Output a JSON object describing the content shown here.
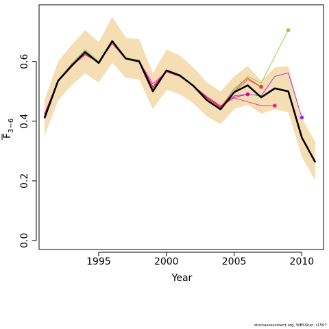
{
  "chart_data": {
    "type": "line",
    "title": "",
    "xlabel": "Year",
    "ylabel_main": "F",
    "ylabel_sub": "3−6",
    "xlim": [
      1990.6,
      2011.6
    ],
    "ylim": [
      -0.03,
      0.79
    ],
    "x_ticks": [
      1995,
      2000,
      2005,
      2010
    ],
    "y_ticks": [
      0.0,
      0.2,
      0.4,
      0.6
    ],
    "y_tick_labels": [
      "0.0",
      "0.2",
      "0.4",
      "0.6"
    ],
    "grid": false,
    "legend": "none",
    "band": {
      "color": "#f5deb3",
      "x": [
        1991,
        1992,
        1993,
        1994,
        1995,
        1996,
        1997,
        1998,
        1999,
        2000,
        2001,
        2002,
        2003,
        2004,
        2005,
        2006,
        2007,
        2008,
        2009,
        2010,
        2011
      ],
      "lower": [
        0.35,
        0.47,
        0.52,
        0.56,
        0.53,
        0.595,
        0.545,
        0.54,
        0.44,
        0.505,
        0.49,
        0.46,
        0.415,
        0.39,
        0.44,
        0.455,
        0.425,
        0.44,
        0.43,
        0.28,
        0.2
      ],
      "upper": [
        0.47,
        0.6,
        0.655,
        0.705,
        0.665,
        0.75,
        0.68,
        0.675,
        0.56,
        0.64,
        0.62,
        0.58,
        0.53,
        0.5,
        0.55,
        0.585,
        0.535,
        0.58,
        0.585,
        0.41,
        0.33
      ]
    },
    "series": [
      {
        "color": "#7fd13b",
        "width": 0.9,
        "x": [
          1991,
          1992,
          1993,
          1994,
          1995,
          1996,
          1997,
          1998,
          1999,
          2000,
          2001,
          2002,
          2003,
          2004,
          2005,
          2006,
          2007,
          2009
        ],
        "values": [
          0.415,
          0.535,
          0.592,
          0.64,
          0.6,
          0.672,
          0.612,
          0.605,
          0.505,
          0.572,
          0.556,
          0.52,
          0.475,
          0.442,
          0.5,
          0.55,
          0.528,
          0.705
        ],
        "endpoint": {
          "x": 2009,
          "y": 0.705
        }
      },
      {
        "color": "#c86428",
        "width": 0.9,
        "x": [
          1991,
          1992,
          1993,
          1994,
          1995,
          1996,
          1997,
          1998,
          1999,
          2000,
          2001,
          2002,
          2003,
          2004,
          2005,
          2006,
          2007
        ],
        "values": [
          0.42,
          0.538,
          0.59,
          0.632,
          0.598,
          0.668,
          0.61,
          0.603,
          0.51,
          0.57,
          0.553,
          0.518,
          0.478,
          0.446,
          0.508,
          0.545,
          0.515
        ],
        "endpoint": {
          "x": 2007,
          "y": 0.515
        }
      },
      {
        "color": "#ff1493",
        "width": 0.9,
        "x": [
          1991,
          1992,
          1993,
          1994,
          1995,
          1996,
          1997,
          1998,
          1999,
          2000,
          2001,
          2002,
          2003,
          2004,
          2005,
          2006,
          2007,
          2008
        ],
        "values": [
          0.425,
          0.535,
          0.585,
          0.622,
          0.597,
          0.66,
          0.608,
          0.6,
          0.525,
          0.565,
          0.55,
          0.518,
          0.482,
          0.452,
          0.478,
          0.465,
          0.452,
          0.452
        ],
        "endpoint": {
          "x": 2008,
          "y": 0.452
        }
      },
      {
        "color": "#a020f0",
        "width": 0.9,
        "x": [
          1991,
          1992,
          1993,
          1994,
          1995,
          1996,
          1997,
          1998,
          1999,
          2000,
          2001,
          2002,
          2003,
          2004,
          2005,
          2006,
          2007,
          2008,
          2009,
          2010
        ],
        "values": [
          0.418,
          0.535,
          0.588,
          0.63,
          0.598,
          0.665,
          0.61,
          0.602,
          0.515,
          0.568,
          0.552,
          0.518,
          0.478,
          0.448,
          0.485,
          0.49,
          0.485,
          0.55,
          0.562,
          0.412
        ],
        "endpoint": {
          "x": 2010,
          "y": 0.412
        }
      },
      {
        "color": "#ff3030",
        "width": 0.9,
        "x": [
          1991,
          1992,
          1993,
          1994,
          1995,
          1996,
          1997,
          1998,
          1999,
          2000,
          2001,
          2002,
          2003,
          2004,
          2005,
          2006,
          2007
        ],
        "values": [
          0.418,
          0.535,
          0.59,
          0.628,
          0.597,
          0.666,
          0.61,
          0.602,
          0.512,
          0.569,
          0.553,
          0.518,
          0.477,
          0.446,
          0.498,
          0.54,
          0.515
        ],
        "endpoint": {
          "x": 2007,
          "y": 0.515
        }
      },
      {
        "color": "#c71585",
        "width": 0.9,
        "x": [
          1991,
          1992,
          1993,
          1994,
          1995,
          1996,
          1997,
          1998,
          1999,
          2000,
          2001,
          2002,
          2003,
          2004,
          2005,
          2006
        ],
        "values": [
          0.42,
          0.535,
          0.588,
          0.625,
          0.597,
          0.665,
          0.61,
          0.602,
          0.515,
          0.568,
          0.552,
          0.518,
          0.479,
          0.448,
          0.48,
          0.49
        ],
        "endpoint": {
          "x": 2006,
          "y": 0.49
        }
      },
      {
        "color": "#000000",
        "width": 2.6,
        "x": [
          1991,
          1992,
          1993,
          1994,
          1995,
          1996,
          1997,
          1998,
          1999,
          2000,
          2001,
          2002,
          2003,
          2004,
          2005,
          2006,
          2007,
          2008,
          2009,
          2010,
          2011
        ],
        "values": [
          0.41,
          0.535,
          0.585,
          0.632,
          0.595,
          0.668,
          0.61,
          0.6,
          0.5,
          0.57,
          0.553,
          0.518,
          0.47,
          0.44,
          0.497,
          0.52,
          0.48,
          0.51,
          0.5,
          0.345,
          0.262
        ],
        "endpoint": null
      }
    ]
  },
  "footer_text": "stockassessment.org, WBSSher, r1507"
}
